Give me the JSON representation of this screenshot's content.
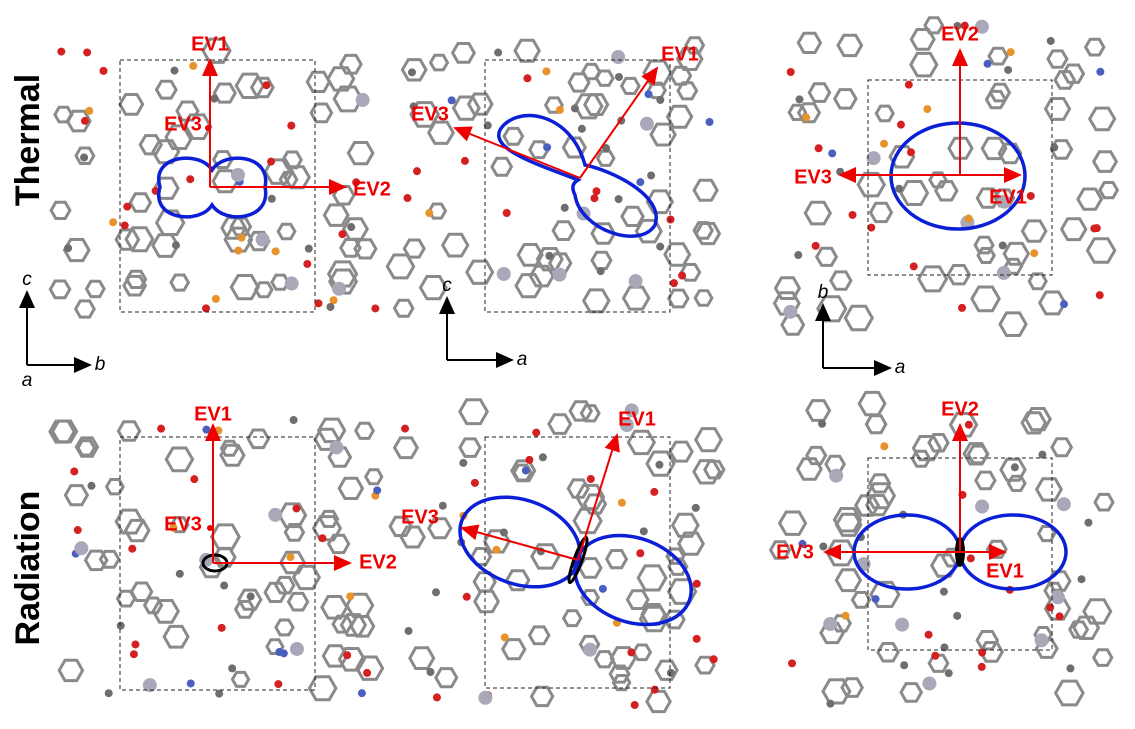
{
  "rows": [
    {
      "label": "Thermal",
      "panels": [
        {
          "vectors": [
            "EV1",
            "EV2",
            "EV3"
          ],
          "axes": {
            "vertical": "c",
            "horizontal": "b",
            "depth": "a"
          }
        },
        {
          "vectors": [
            "EV1",
            "EV3"
          ],
          "axes": {
            "vertical": "c",
            "horizontal": "a"
          }
        },
        {
          "vectors": [
            "EV2",
            "EV3",
            "EV1"
          ],
          "axes": {
            "vertical": "b",
            "horizontal": "a"
          }
        }
      ]
    },
    {
      "label": "Radiation",
      "panels": [
        {
          "vectors": [
            "EV1",
            "EV2",
            "EV3"
          ]
        },
        {
          "vectors": [
            "EV1",
            "EV3"
          ]
        },
        {
          "vectors": [
            "EV2",
            "EV3",
            "EV1"
          ]
        }
      ]
    }
  ]
}
